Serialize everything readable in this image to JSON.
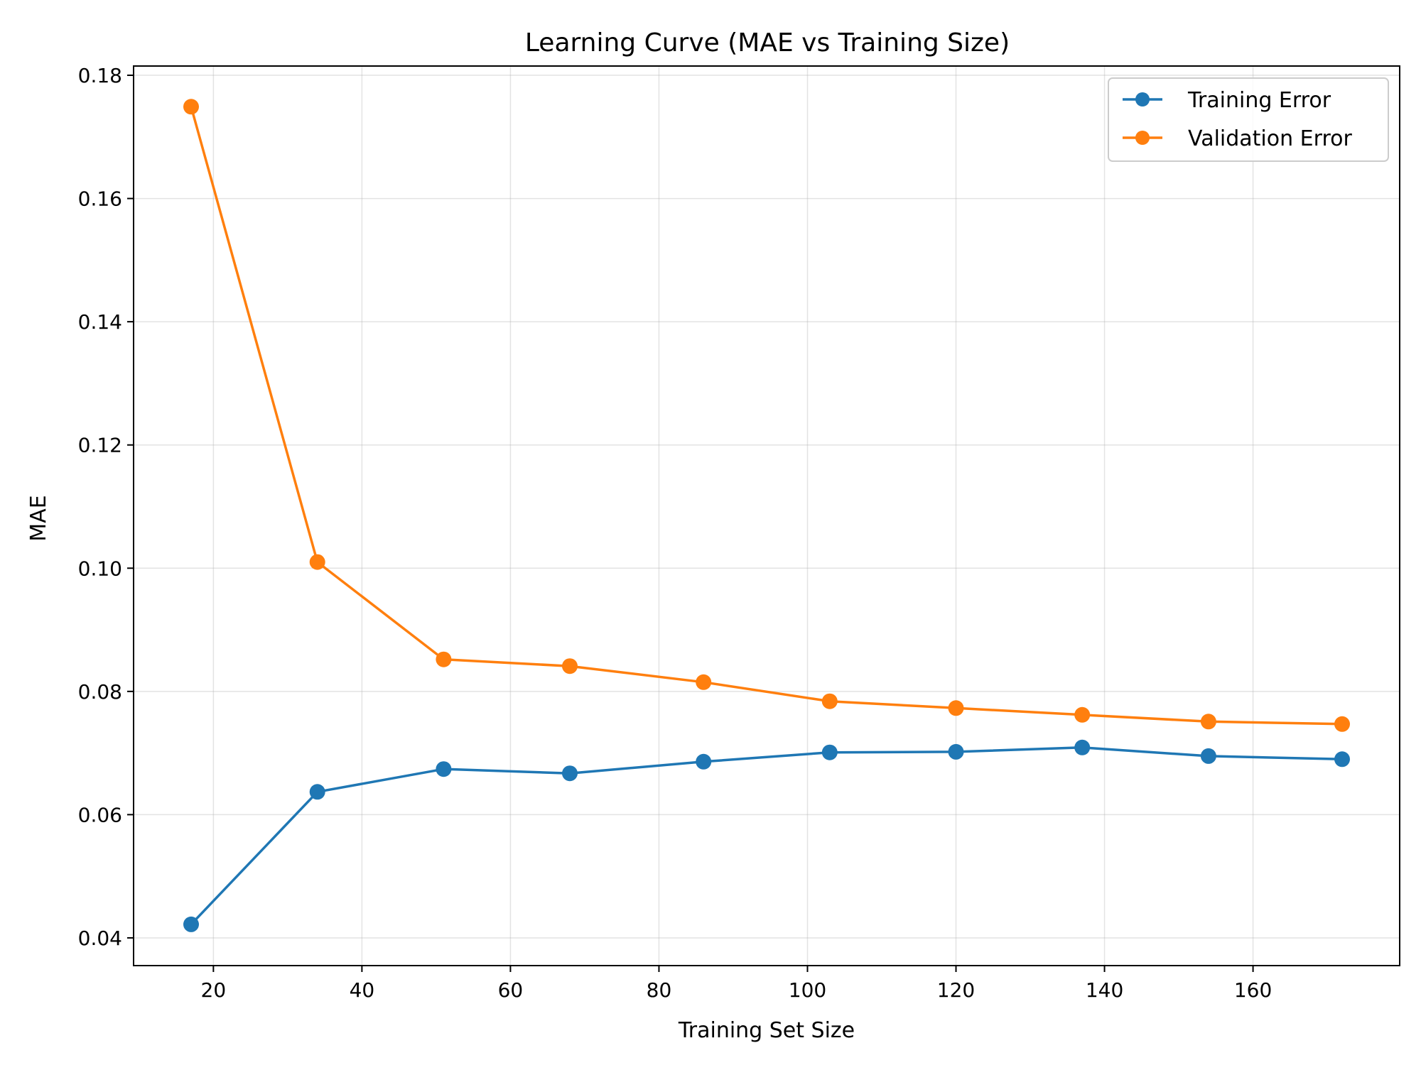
{
  "chart_data": {
    "type": "line",
    "title": "Learning Curve (MAE vs Training Size)",
    "xlabel": "Training Set Size",
    "ylabel": "MAE",
    "x": [
      17,
      34,
      51,
      68,
      86,
      103,
      120,
      137,
      154,
      172
    ],
    "series": [
      {
        "name": "Training Error",
        "color": "#1f77b4",
        "marker": "circle",
        "values": [
          0.0422,
          0.0637,
          0.0674,
          0.0667,
          0.0686,
          0.0701,
          0.0702,
          0.0709,
          0.0695,
          0.069
        ]
      },
      {
        "name": "Validation Error",
        "color": "#ff7f0e",
        "marker": "circle",
        "values": [
          0.1749,
          0.101,
          0.0852,
          0.0841,
          0.0815,
          0.0784,
          0.0773,
          0.0762,
          0.0751,
          0.0747
        ]
      }
    ],
    "xlim": [
      9.25,
      179.75
    ],
    "ylim": [
      0.0355,
      0.1815
    ],
    "xticks": [
      20,
      40,
      60,
      80,
      100,
      120,
      140,
      160
    ],
    "xtick_labels": [
      "20",
      "40",
      "60",
      "80",
      "100",
      "120",
      "140",
      "160"
    ],
    "yticks": [
      0.04,
      0.06,
      0.08,
      0.1,
      0.12,
      0.14,
      0.16,
      0.18
    ],
    "ytick_labels": [
      "0.04",
      "0.06",
      "0.08",
      "0.10",
      "0.12",
      "0.14",
      "0.16",
      "0.18"
    ],
    "grid": true,
    "legend": {
      "position": "top-right"
    }
  }
}
